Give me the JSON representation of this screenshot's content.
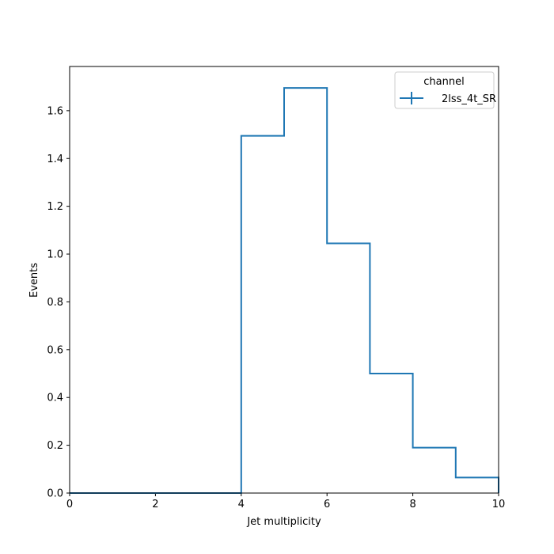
{
  "chart_data": {
    "type": "histogram",
    "xlabel": "Jet multiplicity",
    "ylabel": "Events",
    "xlim": [
      0,
      10
    ],
    "ylim": [
      0,
      1.785
    ],
    "x_ticks": [
      "0",
      "2",
      "4",
      "6",
      "8",
      "10"
    ],
    "y_ticks": [
      "0.0",
      "0.2",
      "0.4",
      "0.6",
      "0.8",
      "1.0",
      "1.2",
      "1.4",
      "1.6"
    ],
    "bin_edges": [
      0,
      1,
      2,
      3,
      4,
      5,
      6,
      7,
      8,
      9,
      10
    ],
    "series": [
      {
        "name": "2lss_4t_SR",
        "color": "#1f77b4",
        "values": [
          0,
          0,
          0,
          0,
          1.495,
          1.695,
          1.045,
          0.5,
          0.19,
          0.065
        ]
      }
    ],
    "legend": {
      "title": "channel",
      "position": "top-right",
      "entries": [
        "2lss_4t_SR"
      ]
    },
    "grid": false
  }
}
